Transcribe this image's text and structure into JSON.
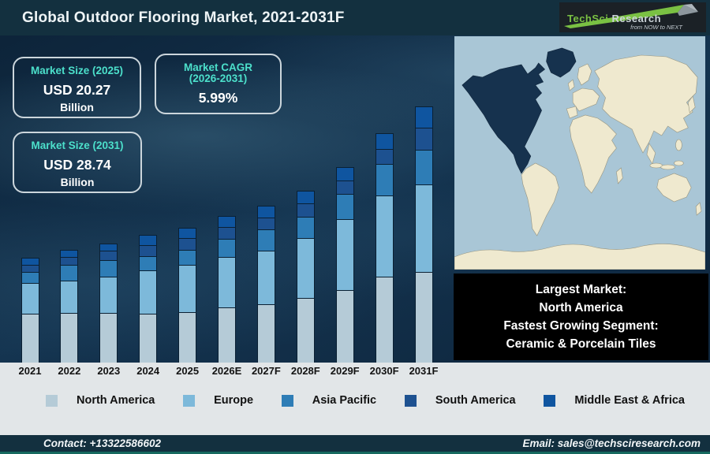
{
  "header": {
    "title": "Global Outdoor Flooring Market, 2021-2031F",
    "logo": {
      "brand_primary": "TechSci",
      "brand_secondary": "Research",
      "tagline": "from NOW to NEXT"
    }
  },
  "stats": [
    {
      "label": "Market Size (2025)",
      "value": "USD 20.27",
      "unit": "Billion"
    },
    {
      "label_line1": "Market CAGR",
      "label_line2": "(2026-2031)",
      "value": "5.99%"
    },
    {
      "label": "Market Size (2031)",
      "value": "USD 28.74",
      "unit": "Billion"
    }
  ],
  "highlight_box": {
    "lines": [
      "Largest Market:",
      "North America",
      "Fastest Growing Segment:",
      "Ceramic & Porcelain Tiles"
    ]
  },
  "chart_data": {
    "type": "bar",
    "stacked": true,
    "title": "Global Outdoor Flooring Market, 2021-2031F",
    "categories": [
      "2021",
      "2022",
      "2023",
      "2024",
      "2025",
      "2026E",
      "2027F",
      "2028F",
      "2029F",
      "2030F",
      "2031F"
    ],
    "series_order": "bottom-to-top",
    "units": "relative segment heights (px) — chart has no numeric axis",
    "series": [
      {
        "name": "North America",
        "color": "#b5cbd7",
        "values": [
          62,
          63,
          63,
          62,
          64,
          70,
          74,
          82,
          92,
          109,
          115
        ]
      },
      {
        "name": "Europe",
        "color": "#7db9da",
        "values": [
          39,
          41,
          46,
          55,
          60,
          64,
          68,
          76,
          90,
          103,
          111
        ]
      },
      {
        "name": "Asia Pacific",
        "color": "#2e7db6",
        "values": [
          14,
          20,
          21,
          18,
          19,
          23,
          27,
          27,
          32,
          40,
          44
        ]
      },
      {
        "name": "South America",
        "color": "#1d5190",
        "values": [
          9,
          10,
          12,
          14,
          15,
          15,
          15,
          17,
          17,
          19,
          28
        ]
      },
      {
        "name": "Middle East & Africa",
        "color": "#0f55a0",
        "values": [
          9,
          9,
          9,
          13,
          13,
          14,
          15,
          16,
          17,
          20,
          27
        ]
      }
    ],
    "annotations": [
      "Market Size (2025): USD 20.27 Billion",
      "Market CAGR (2026-2031): 5.99%",
      "Market Size (2031): USD 28.74 Billion",
      "Largest Market: North America",
      "Fastest Growing Segment: Ceramic & Porcelain Tiles"
    ],
    "legend_position": "bottom"
  },
  "footer": {
    "contact": "Contact: +13322586602",
    "email": "Email: sales@techsciresearch.com"
  },
  "colors": {
    "accent_teal": "#4ce0cb",
    "header_bg": "#13303f",
    "footer_bg": "#13303f",
    "teal_line": "#17695f",
    "strip_bg": "#e2e6e8",
    "map_ocean": "#a9c6d6",
    "map_land": "#efe9cf",
    "map_highlight": "#16324e",
    "logo_green": "#7ac143"
  }
}
